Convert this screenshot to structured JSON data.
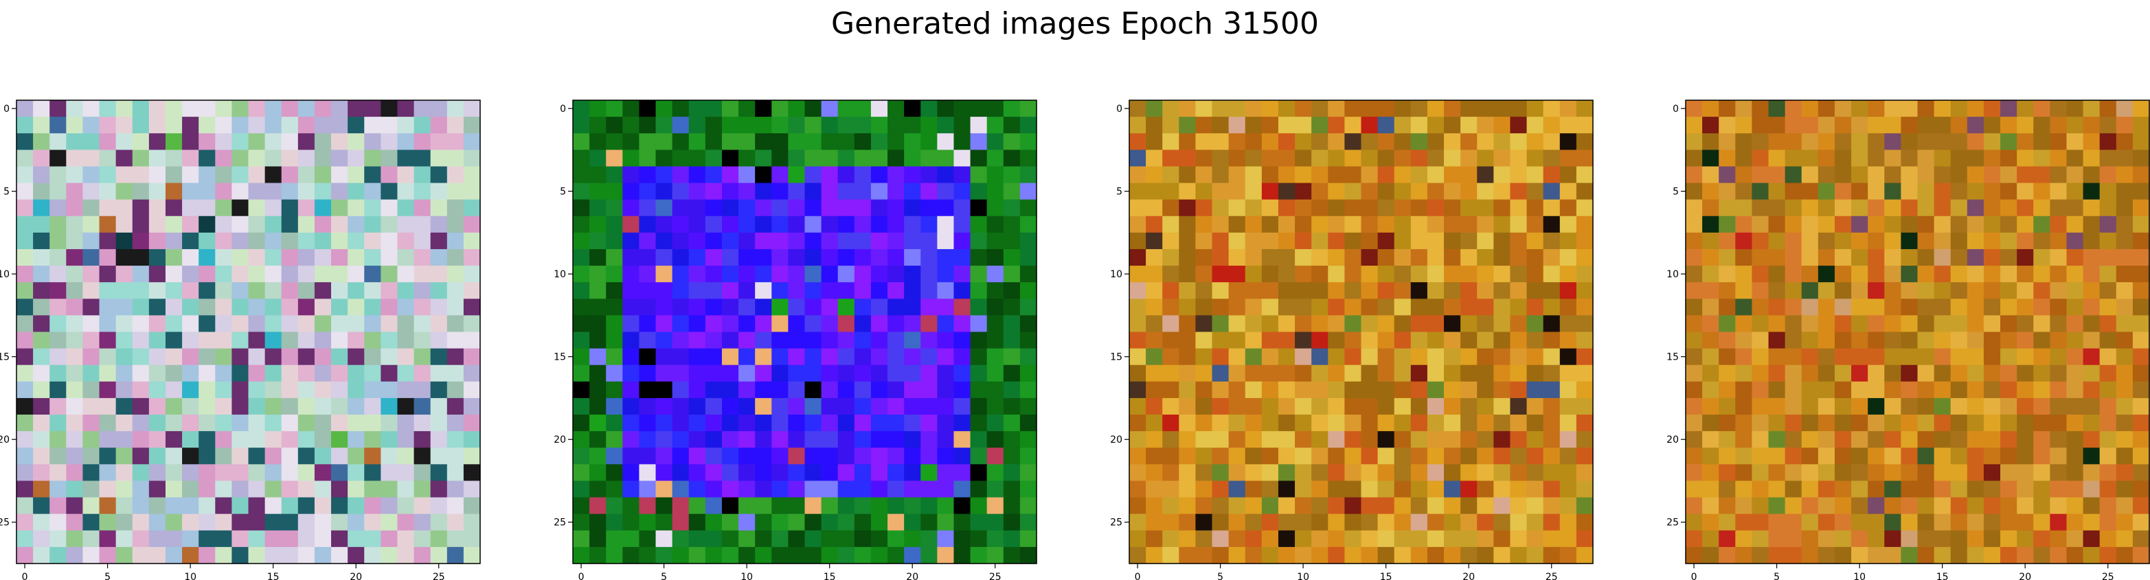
{
  "figure": {
    "title": "Generated images Epoch 31500"
  },
  "chart_data": [
    {
      "type": "heatmap",
      "title": "",
      "xlabel": "",
      "ylabel": "",
      "grid": false,
      "size": [
        28,
        28
      ],
      "xlim": [
        -0.5,
        27.5
      ],
      "ylim": [
        27.5,
        -0.5
      ],
      "x_ticks": [
        0,
        5,
        10,
        15,
        20,
        25
      ],
      "y_ticks": [
        0,
        5,
        10,
        15,
        20,
        25
      ],
      "palette": [
        "#d6cfe6",
        "#c9e4df",
        "#e6d2d6",
        "#b9d9c9",
        "#a4c4e0",
        "#e3b2d0",
        "#cfe8c4",
        "#9adbd2",
        "#b4b0d8",
        "#e8e3ef",
        "#7fd0c4",
        "#d99ac8",
        "#94c98c",
        "#6a2d6e",
        "#1c5d68",
        "#9ec0b0"
      ],
      "accents": [
        "#1a1a1a",
        "#0d3c43",
        "#2fb3c9",
        "#58b844",
        "#7e2a76",
        "#3e6b9f",
        "#b8692e"
      ],
      "accent_rate": 0.05,
      "seed": 11
    },
    {
      "type": "heatmap",
      "title": "",
      "xlabel": "",
      "ylabel": "",
      "grid": false,
      "size": [
        28,
        28
      ],
      "xlim": [
        -0.5,
        27.5
      ],
      "ylim": [
        27.5,
        -0.5
      ],
      "x_ticks": [
        0,
        5,
        10,
        15,
        20,
        25
      ],
      "y_ticks": [
        0,
        5,
        10,
        15,
        20,
        25
      ],
      "palette": [
        "#0d6e12",
        "#128a16",
        "#1d9a22",
        "#0a5a0e",
        "#0c7a2c",
        "#33a32a",
        "#07480b",
        "#16882e"
      ],
      "inner_palette": [
        "#2a0dff",
        "#3d12f0",
        "#1b16e8",
        "#5010ff",
        "#6a1cff",
        "#2c2cff",
        "#4a3cf2",
        "#8a1cff"
      ],
      "accents": [
        "#000000",
        "#1aa31a",
        "#7d7dff",
        "#e8e0f0",
        "#3d6ac6",
        "#bc3a5a",
        "#f0b070"
      ],
      "accent_rate": 0.09,
      "inner_box": [
        3,
        4,
        23,
        23
      ],
      "seed": 22
    },
    {
      "type": "heatmap",
      "title": "",
      "xlabel": "",
      "ylabel": "",
      "grid": false,
      "size": [
        28,
        28
      ],
      "xlim": [
        -0.5,
        27.5
      ],
      "ylim": [
        27.5,
        -0.5
      ],
      "x_ticks": [
        0,
        5,
        10,
        15,
        20,
        25
      ],
      "y_ticks": [
        0,
        5,
        10,
        15,
        20,
        25
      ],
      "palette": [
        "#d98b1a",
        "#e0a020",
        "#c67118",
        "#b98c16",
        "#e8b43a",
        "#cf5b1a",
        "#a8781a",
        "#dc9a2e",
        "#b5650f",
        "#c9a12a",
        "#9d6a10",
        "#e4c44a"
      ],
      "accents": [
        "#1a0f08",
        "#7a1a10",
        "#c21e12",
        "#6a8a2a",
        "#3e5a8e",
        "#d9a890",
        "#4a3020"
      ],
      "accent_rate": 0.07,
      "seed": 33
    },
    {
      "type": "heatmap",
      "title": "",
      "xlabel": "",
      "ylabel": "",
      "grid": false,
      "size": [
        28,
        28
      ],
      "xlim": [
        -0.5,
        27.5
      ],
      "ylim": [
        27.5,
        -0.5
      ],
      "x_ticks": [
        0,
        5,
        10,
        15,
        20,
        25
      ],
      "y_ticks": [
        0,
        5,
        10,
        15,
        20,
        25
      ],
      "palette": [
        "#d98b1a",
        "#c87616",
        "#e0a424",
        "#b98a18",
        "#cf621a",
        "#a8721a",
        "#d69a34",
        "#b0600f",
        "#c9a02a",
        "#9d6c12",
        "#d87a2e",
        "#e6b03e"
      ],
      "accents": [
        "#0a2a10",
        "#7a1a10",
        "#c2221a",
        "#6a8a2a",
        "#7a4a6a",
        "#d0a070",
        "#3a5a2a"
      ],
      "accent_rate": 0.07,
      "seed": 44
    }
  ]
}
